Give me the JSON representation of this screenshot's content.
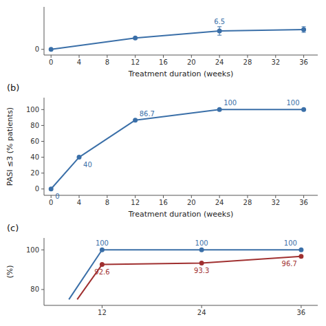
{
  "chart_data": [
    {
      "type": "line",
      "xlabel": "Treatment duration (weeks)",
      "x": [
        0,
        12,
        24,
        36
      ],
      "series": [
        {
          "color": "#3a6fa8",
          "marker": "circle",
          "values": [
            0,
            4,
            6.5,
            7
          ],
          "errors": [
            null,
            null,
            1.5,
            1.0
          ]
        }
      ],
      "xlim": [
        -1,
        38
      ],
      "ylim": [
        -2,
        15
      ],
      "xticks": [
        0,
        4,
        8,
        12,
        16,
        20,
        24,
        28,
        32,
        36
      ],
      "yticks": [
        0
      ],
      "annotations": [
        {
          "x": 24,
          "y": 6.5,
          "text": "6.5"
        }
      ]
    },
    {
      "type": "line",
      "title": "(b)",
      "xlabel": "Treatment duration (weeks)",
      "ylabel": "PASI ≤3 (% patients)",
      "x": [
        0,
        4,
        12,
        24,
        36
      ],
      "series": [
        {
          "color": "#3a6fa8",
          "marker": "circle",
          "values": [
            0,
            40,
            86.7,
            100,
            100
          ]
        }
      ],
      "data_labels": true,
      "xlim": [
        -1,
        38
      ],
      "ylim": [
        -8,
        115
      ],
      "xticks": [
        0,
        4,
        8,
        12,
        16,
        20,
        24,
        28,
        32,
        36
      ],
      "yticks": [
        0,
        20,
        40,
        60,
        80,
        100
      ]
    },
    {
      "type": "line",
      "title": "(c)",
      "ylabel": "(%)",
      "series": [
        {
          "color": "#3a6fa8",
          "marker": "circle",
          "x": [
            8,
            12,
            24,
            36
          ],
          "values": [
            75,
            100,
            100,
            100
          ],
          "value_labels": [
            null,
            "100",
            "100",
            "100"
          ]
        },
        {
          "color": "#a03030",
          "marker": "circle",
          "x": [
            9,
            12,
            24,
            36
          ],
          "values": [
            75,
            92.6,
            93.3,
            96.7
          ],
          "value_labels": [
            null,
            "92.6",
            "93.3",
            "96.7"
          ]
        }
      ],
      "xlim": [
        5,
        38
      ],
      "ylim": [
        72,
        106
      ],
      "xticks": [
        12,
        24,
        36
      ],
      "yticks": [
        80,
        100
      ]
    }
  ]
}
